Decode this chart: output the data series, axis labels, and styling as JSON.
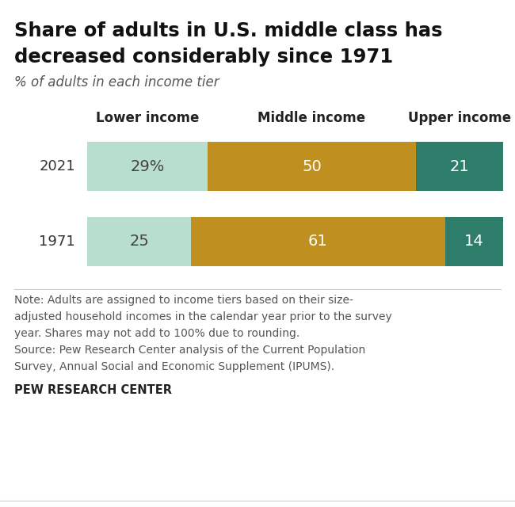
{
  "title_line1": "Share of adults in U.S. middle class has",
  "title_line2": "decreased considerably since 1971",
  "subtitle": "% of adults in each income tier",
  "years": [
    "2021",
    "1971"
  ],
  "col_header_labels": [
    "Lower income",
    "Middle income",
    "Upper income"
  ],
  "values": {
    "2021": [
      29,
      50,
      21
    ],
    "1971": [
      25,
      61,
      14
    ]
  },
  "bar_labels": {
    "2021": [
      "29%",
      "50",
      "21"
    ],
    "1971": [
      "25",
      "61",
      "14"
    ]
  },
  "colors": [
    "#b8dece",
    "#bf9020",
    "#2e7d6b"
  ],
  "label_colors": [
    "#444444",
    "#ffffff",
    "#ffffff"
  ],
  "note_line1": "Note: Adults are assigned to income tiers based on their size-",
  "note_line2": "adjusted household incomes in the calendar year prior to the survey",
  "note_line3": "year. Shares may not add to 100% due to rounding.",
  "note_line4": "Source: Pew Research Center analysis of the Current Population",
  "note_line5": "Survey, Annual Social and Economic Supplement (IPUMS).",
  "source_label": "PEW RESEARCH CENTER",
  "background_color": "#ffffff"
}
